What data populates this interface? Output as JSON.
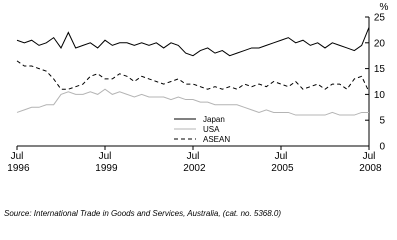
{
  "chart_data": {
    "type": "line",
    "source": "Source: International Trade in Goods and Services, Australia, (cat. no. 5368.0)",
    "y_unit": "%",
    "x": [
      1996.5,
      1996.75,
      1997,
      1997.25,
      1997.5,
      1997.75,
      1998,
      1998.25,
      1998.5,
      1998.75,
      1999,
      1999.25,
      1999.5,
      1999.75,
      2000,
      2000.25,
      2000.5,
      2000.75,
      2001,
      2001.25,
      2001.5,
      2001.75,
      2002,
      2002.25,
      2002.5,
      2002.75,
      2003,
      2003.25,
      2003.5,
      2003.75,
      2004,
      2004.25,
      2004.5,
      2004.75,
      2005,
      2005.25,
      2005.5,
      2005.75,
      2006,
      2006.25,
      2006.5,
      2006.75,
      2007,
      2007.25,
      2007.5,
      2007.75,
      2008,
      2008.25,
      2008.5
    ],
    "series": [
      {
        "name": "Japan",
        "color": "#000000",
        "dash": false,
        "values": [
          20.5,
          20,
          20.5,
          19.5,
          20,
          21,
          19,
          22,
          19,
          19.5,
          20,
          19,
          20.5,
          19.5,
          20,
          20,
          19.5,
          20,
          19.5,
          20,
          19,
          20,
          19.5,
          18,
          17.5,
          18.5,
          19,
          18,
          18.5,
          17.5,
          18,
          18.5,
          19,
          19,
          19.5,
          20,
          20.5,
          21,
          20,
          20.5,
          19.5,
          20,
          19,
          20,
          19.5,
          19,
          18.5,
          19.5,
          23
        ]
      },
      {
        "name": "USA",
        "color": "#b4b4b4",
        "dash": false,
        "values": [
          6.5,
          7,
          7.5,
          7.5,
          8,
          8,
          10,
          10.5,
          10,
          10,
          10.5,
          10,
          11,
          10,
          10.5,
          10,
          9.5,
          10,
          9.5,
          9.5,
          9.5,
          9,
          9.5,
          9,
          9,
          8.5,
          8.5,
          8,
          8,
          8,
          8,
          7.5,
          7,
          6.5,
          7,
          6.5,
          6.5,
          6.5,
          6,
          6,
          6,
          6,
          6,
          6.5,
          6,
          6,
          6,
          6.5,
          6.5
        ]
      },
      {
        "name": "ASEAN",
        "color": "#000000",
        "dash": true,
        "values": [
          16.5,
          15.5,
          15.5,
          15,
          14.5,
          13,
          11,
          11,
          11.5,
          12,
          13.5,
          14,
          13,
          13,
          14,
          13.5,
          12.5,
          13.5,
          13,
          12.5,
          12,
          12.5,
          13,
          12,
          12,
          11.5,
          11,
          11.5,
          11,
          11.5,
          11,
          12,
          11.5,
          12,
          11.5,
          12.5,
          12,
          11.5,
          12.5,
          11,
          11.5,
          12,
          11,
          12,
          12,
          11,
          13,
          13.5,
          10.5
        ]
      }
    ],
    "xlim": [
      1996.5,
      2008.5
    ],
    "xticks": [
      {
        "value": 1996.5,
        "label": "Jul 1996"
      },
      {
        "value": 1999.5,
        "label": "Jul 1999"
      },
      {
        "value": 2002.5,
        "label": "Jul 2002"
      },
      {
        "value": 2005.5,
        "label": "Jul 2005"
      },
      {
        "value": 2008.5,
        "label": "Jul 2008"
      }
    ],
    "ylim": [
      0,
      25
    ],
    "yticks": [
      0,
      5,
      10,
      15,
      20,
      25
    ],
    "y_axis_side": "right",
    "grid": false
  }
}
